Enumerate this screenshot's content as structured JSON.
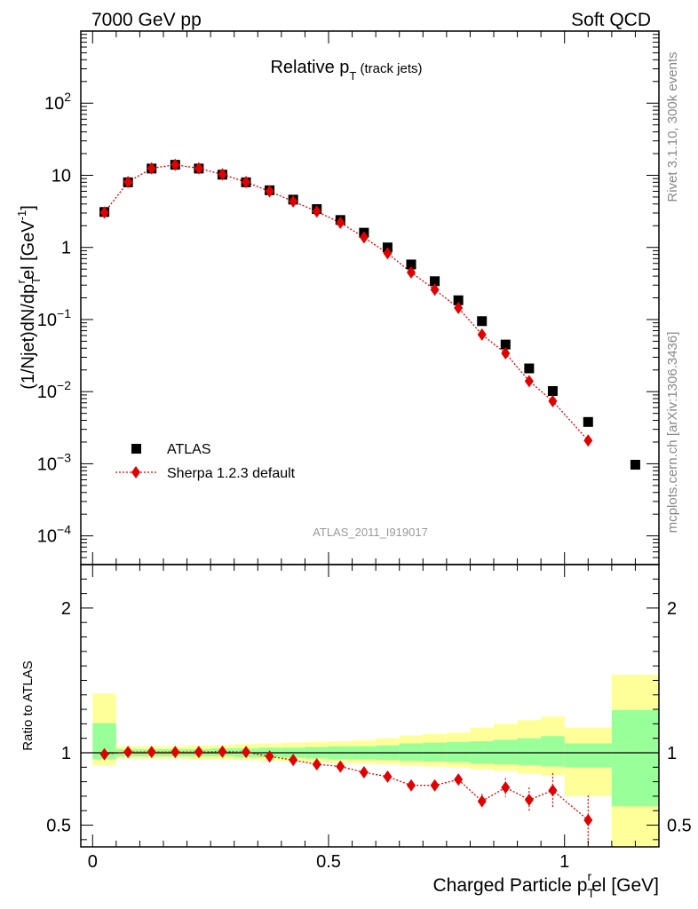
{
  "header": {
    "left": "7000 GeV pp",
    "right": "Soft QCD"
  },
  "side_labels": {
    "rivet": "Rivet 3.1.10,  300k events",
    "mcplots": "mcplots.cern.ch [arXiv:1306.3436]"
  },
  "chart_data": [
    {
      "type": "scatter",
      "title": "Relative p",
      "title_sub": "T",
      "title_suffix": " (track jets)",
      "analysis_tag": "ATLAS_2011_I919017",
      "ylabel": "(1/Njet)dN/dp",
      "ylabel_sub": "T",
      "ylabel_sup": "r",
      "ylabel_mid": "el [GeV",
      "ylabel_sup2": "-1",
      "ylabel_end": "]",
      "yscale": "log",
      "ylim": [
        4e-05,
        1000
      ],
      "xlim": [
        -0.025,
        1.2
      ],
      "y_tick_labels": [
        "10^-4",
        "10^-3",
        "10^-2",
        "10^-1",
        "1",
        "10",
        "10^2"
      ],
      "legend_position": "lower-left",
      "series": [
        {
          "name": "ATLAS",
          "marker": "square",
          "color": "#000000",
          "x": [
            0.025,
            0.075,
            0.125,
            0.175,
            0.225,
            0.275,
            0.325,
            0.375,
            0.425,
            0.475,
            0.525,
            0.575,
            0.625,
            0.675,
            0.725,
            0.775,
            0.825,
            0.875,
            0.925,
            0.975,
            1.05,
            1.15
          ],
          "y": [
            3.1,
            8.0,
            12.4,
            14.0,
            12.4,
            10.2,
            8.0,
            6.2,
            4.6,
            3.4,
            2.4,
            1.6,
            1.0,
            0.58,
            0.34,
            0.185,
            0.095,
            0.045,
            0.021,
            0.0102,
            0.0038,
            0.00097
          ]
        },
        {
          "name": "Sherpa 1.2.3 default",
          "marker": "diamond",
          "line": "dotted",
          "color": "#e00000",
          "x": [
            0.025,
            0.075,
            0.125,
            0.175,
            0.225,
            0.275,
            0.325,
            0.375,
            0.425,
            0.475,
            0.525,
            0.575,
            0.625,
            0.675,
            0.725,
            0.775,
            0.825,
            0.875,
            0.925,
            0.975,
            1.05
          ],
          "y": [
            3.05,
            8.05,
            12.5,
            14.0,
            12.5,
            10.3,
            8.05,
            6.0,
            4.35,
            3.15,
            2.2,
            1.38,
            0.83,
            0.45,
            0.26,
            0.145,
            0.062,
            0.034,
            0.014,
            0.0074,
            0.0021
          ]
        }
      ]
    },
    {
      "type": "scatter",
      "ylabel": "Ratio to ATLAS",
      "xlabel": "Charged Particle p",
      "xlabel_sub": "T",
      "xlabel_sup": "r",
      "xlabel_end": "el [GeV]",
      "ylim": [
        0.35,
        2.3
      ],
      "xlim": [
        -0.025,
        1.2
      ],
      "y_tick_labels": [
        "0.5",
        "1",
        "2"
      ],
      "x_tick_labels": [
        "0",
        "0.5",
        "1"
      ],
      "reference_line": 1.0,
      "bands": [
        {
          "xlo": 0.0,
          "xhi": 0.05,
          "outer": [
            0.915,
            1.41
          ],
          "inner": [
            0.955,
            1.205
          ]
        },
        {
          "xlo": 0.05,
          "xhi": 0.1,
          "outer": [
            0.96,
            1.045
          ],
          "inner": [
            0.975,
            1.025
          ]
        },
        {
          "xlo": 0.1,
          "xhi": 0.15,
          "outer": [
            0.96,
            1.045
          ],
          "inner": [
            0.975,
            1.025
          ]
        },
        {
          "xlo": 0.15,
          "xhi": 0.2,
          "outer": [
            0.96,
            1.045
          ],
          "inner": [
            0.975,
            1.025
          ]
        },
        {
          "xlo": 0.2,
          "xhi": 0.25,
          "outer": [
            0.955,
            1.05
          ],
          "inner": [
            0.975,
            1.025
          ]
        },
        {
          "xlo": 0.25,
          "xhi": 0.3,
          "outer": [
            0.955,
            1.055
          ],
          "inner": [
            0.975,
            1.03
          ]
        },
        {
          "xlo": 0.3,
          "xhi": 0.35,
          "outer": [
            0.95,
            1.06
          ],
          "inner": [
            0.97,
            1.03
          ]
        },
        {
          "xlo": 0.35,
          "xhi": 0.4,
          "outer": [
            0.945,
            1.065
          ],
          "inner": [
            0.97,
            1.035
          ]
        },
        {
          "xlo": 0.4,
          "xhi": 0.45,
          "outer": [
            0.94,
            1.07
          ],
          "inner": [
            0.965,
            1.035
          ]
        },
        {
          "xlo": 0.45,
          "xhi": 0.5,
          "outer": [
            0.935,
            1.075
          ],
          "inner": [
            0.96,
            1.04
          ]
        },
        {
          "xlo": 0.5,
          "xhi": 0.55,
          "outer": [
            0.93,
            1.08
          ],
          "inner": [
            0.955,
            1.045
          ]
        },
        {
          "xlo": 0.55,
          "xhi": 0.6,
          "outer": [
            0.925,
            1.085
          ],
          "inner": [
            0.955,
            1.045
          ]
        },
        {
          "xlo": 0.6,
          "xhi": 0.65,
          "outer": [
            0.92,
            1.1
          ],
          "inner": [
            0.95,
            1.05
          ]
        },
        {
          "xlo": 0.65,
          "xhi": 0.7,
          "outer": [
            0.91,
            1.12
          ],
          "inner": [
            0.945,
            1.065
          ]
        },
        {
          "xlo": 0.7,
          "xhi": 0.75,
          "outer": [
            0.905,
            1.13
          ],
          "inner": [
            0.94,
            1.07
          ]
        },
        {
          "xlo": 0.75,
          "xhi": 0.8,
          "outer": [
            0.9,
            1.14
          ],
          "inner": [
            0.935,
            1.075
          ]
        },
        {
          "xlo": 0.8,
          "xhi": 0.85,
          "outer": [
            0.885,
            1.175
          ],
          "inner": [
            0.925,
            1.08
          ]
        },
        {
          "xlo": 0.85,
          "xhi": 0.9,
          "outer": [
            0.875,
            1.2
          ],
          "inner": [
            0.92,
            1.09
          ]
        },
        {
          "xlo": 0.9,
          "xhi": 0.95,
          "outer": [
            0.855,
            1.225
          ],
          "inner": [
            0.915,
            1.1
          ]
        },
        {
          "xlo": 0.95,
          "xhi": 1.0,
          "outer": [
            0.845,
            1.25
          ],
          "inner": [
            0.905,
            1.115
          ]
        },
        {
          "xlo": 1.0,
          "xhi": 1.1,
          "outer": [
            0.7,
            1.175
          ],
          "inner": [
            0.9,
            1.065
          ]
        },
        {
          "xlo": 1.1,
          "xhi": 1.2,
          "outer": [
            0.35,
            1.54
          ],
          "inner": [
            0.63,
            1.295
          ]
        }
      ],
      "series": [
        {
          "name": "Sherpa 1.2.3 default",
          "marker": "diamond",
          "line": "dotted",
          "color": "#e00000",
          "x": [
            0.025,
            0.075,
            0.125,
            0.175,
            0.225,
            0.275,
            0.325,
            0.375,
            0.425,
            0.475,
            0.525,
            0.575,
            0.625,
            0.675,
            0.725,
            0.775,
            0.825,
            0.875,
            0.925,
            0.975,
            1.05
          ],
          "y": [
            0.99,
            1.005,
            1.005,
            1.005,
            1.005,
            1.008,
            1.005,
            0.975,
            0.95,
            0.92,
            0.905,
            0.865,
            0.835,
            0.775,
            0.775,
            0.815,
            0.665,
            0.76,
            0.675,
            0.74,
            0.535
          ],
          "err": [
            0.005,
            0.005,
            0.005,
            0.005,
            0.005,
            0.006,
            0.006,
            0.007,
            0.008,
            0.01,
            0.012,
            0.015,
            0.015,
            0.02,
            0.025,
            0.035,
            0.05,
            0.065,
            0.085,
            0.12,
            0.17
          ]
        }
      ]
    }
  ]
}
